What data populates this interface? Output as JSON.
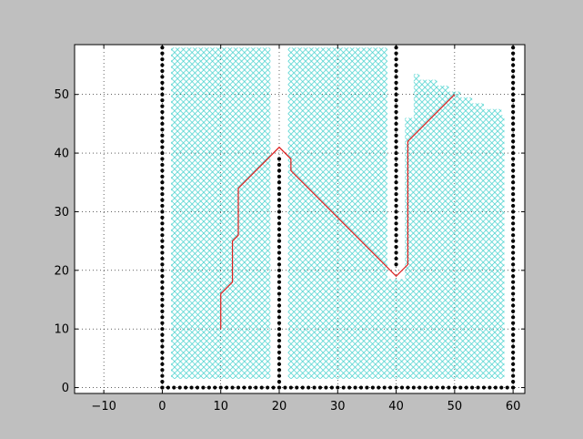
{
  "chart_data": {
    "type": "scatter",
    "title": "",
    "xlabel": "",
    "ylabel": "",
    "xlim": [
      -15,
      62
    ],
    "ylim": [
      -1,
      58.5
    ],
    "xticks": [
      -10,
      0,
      10,
      20,
      30,
      40,
      50,
      60
    ],
    "yticks": [
      0,
      10,
      20,
      30,
      40,
      50
    ],
    "xtick_labels": [
      "−10",
      "0",
      "10",
      "20",
      "30",
      "40",
      "50",
      "60"
    ],
    "ytick_labels": [
      "0",
      "10",
      "20",
      "30",
      "40",
      "50"
    ],
    "grid": true,
    "legend": "none",
    "colors": {
      "figure_background": "#bfbfbf",
      "axes_background": "#ffffff",
      "obstacles": "#000000",
      "free_cells": "#40d0cc",
      "path": "#dd1e1e"
    },
    "obstacle_segments": [
      {
        "x": [
          0,
          0
        ],
        "y": [
          0,
          58
        ]
      },
      {
        "x": [
          0,
          60
        ],
        "y": [
          0,
          0
        ]
      },
      {
        "x": [
          60,
          60
        ],
        "y": [
          0,
          58
        ]
      },
      {
        "x": [
          20,
          20
        ],
        "y": [
          0,
          39
        ]
      },
      {
        "x": [
          40,
          40
        ],
        "y": [
          21,
          58
        ]
      }
    ],
    "free_regions": [
      {
        "x": [
          1.5,
          18.5
        ],
        "y": [
          1.5,
          58
        ]
      },
      {
        "x": [
          21.5,
          38.5
        ],
        "y": [
          1.5,
          58
        ]
      },
      {
        "x": [
          38.5,
          41.5
        ],
        "y": [
          1.5,
          18.5
        ]
      },
      {
        "x": [
          41.5,
          58.5
        ],
        "y": [
          1.5,
          46
        ]
      }
    ],
    "free_top_boundary": {
      "x": [
        41.5,
        43,
        44,
        45,
        46,
        47,
        48,
        49,
        50,
        51,
        52,
        53,
        54,
        55,
        56,
        57,
        58,
        58.5
      ],
      "y": [
        46,
        53.5,
        52.5,
        52.5,
        52.5,
        51.5,
        51.5,
        50.5,
        50.5,
        49.5,
        49.5,
        48.5,
        48.5,
        47.5,
        47.5,
        47.5,
        46.5,
        46.5
      ]
    },
    "path": {
      "x": [
        10,
        10,
        12,
        12,
        13,
        13,
        20,
        22,
        22,
        40,
        42,
        42,
        50
      ],
      "y": [
        10,
        16,
        18,
        25,
        26,
        34,
        41,
        39,
        37,
        19,
        21,
        42,
        50
      ]
    }
  }
}
